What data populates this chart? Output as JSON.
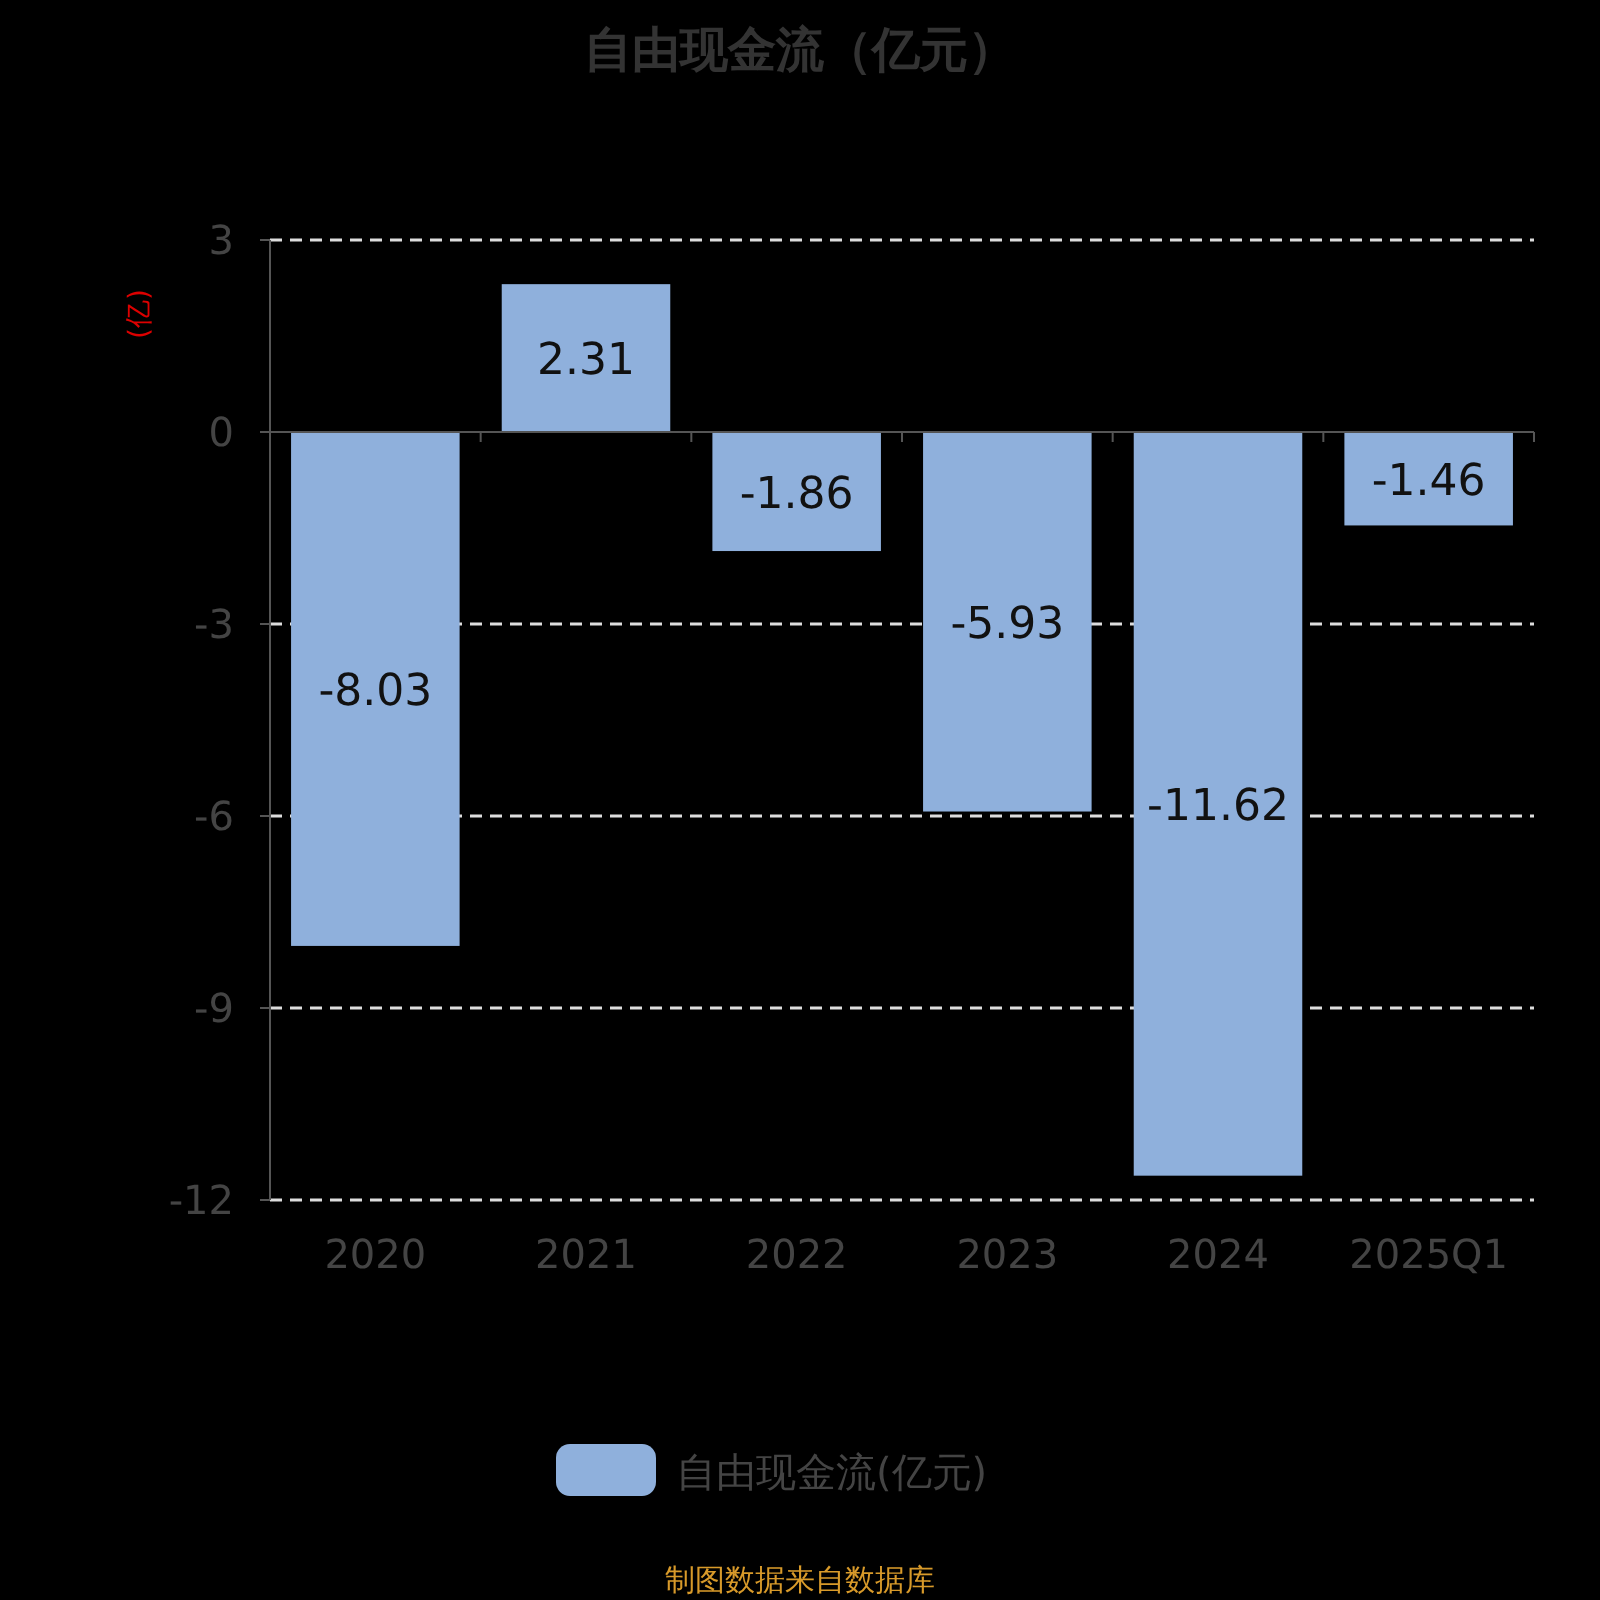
{
  "chart_data": {
    "type": "bar",
    "title": "自由现金流（亿元）",
    "ylabel": "(亿)",
    "categories": [
      "2020",
      "2021",
      "2022",
      "2023",
      "2024",
      "2025Q1"
    ],
    "series": [
      {
        "name": "自由现金流(亿元)",
        "color": "#8fb0dc",
        "values": [
          -8.03,
          2.31,
          -1.86,
          -5.93,
          -11.62,
          -1.46
        ]
      }
    ],
    "ylim": [
      -12,
      3
    ],
    "yticks": [
      -12,
      -9,
      -6,
      -3,
      0,
      3
    ],
    "grid": "y",
    "legend": "bottom",
    "data_labels": true,
    "annotations": [
      "制图数据来自数据库"
    ]
  }
}
